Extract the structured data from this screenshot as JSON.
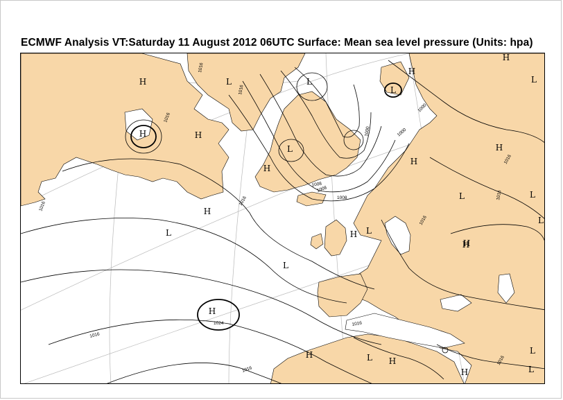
{
  "title": "ECMWF  Analysis VT:Saturday 11 August 2012 06UTC Surface: Mean sea level pressure (Units: hpa)",
  "colors": {
    "land": "#f8d7a8",
    "sea": "#ffffff",
    "isobar": "#000000",
    "graticule": "#b0b0b0",
    "frame": "#c8c8c8"
  },
  "centres": [
    {
      "label": "H"
    },
    {
      "label": "L"
    },
    {
      "label": "H"
    },
    {
      "label": "H"
    },
    {
      "label": "L"
    },
    {
      "label": "H"
    },
    {
      "label": "H"
    },
    {
      "label": "L"
    },
    {
      "label": "L"
    },
    {
      "label": "H"
    },
    {
      "label": "L"
    },
    {
      "label": "H"
    },
    {
      "label": "L"
    },
    {
      "label": "H"
    },
    {
      "label": "H"
    },
    {
      "label": "H"
    },
    {
      "label": "H"
    },
    {
      "label": "L"
    },
    {
      "label": "L"
    },
    {
      "label": "L"
    },
    {
      "label": "L"
    },
    {
      "label": "L"
    },
    {
      "label": "H"
    },
    {
      "label": "H"
    },
    {
      "label": "L"
    },
    {
      "label": "H"
    },
    {
      "label": "H"
    },
    {
      "label": "H"
    },
    {
      "label": "L"
    },
    {
      "label": "L"
    }
  ],
  "isobar_labels": [
    "1016",
    "1016",
    "1016",
    "1016",
    "1016",
    "1016",
    "1016",
    "1024",
    "1008",
    "1000",
    "1000",
    "1000",
    "1008",
    "1008",
    "1016",
    "1016",
    "1016",
    "1016",
    "1016"
  ]
}
